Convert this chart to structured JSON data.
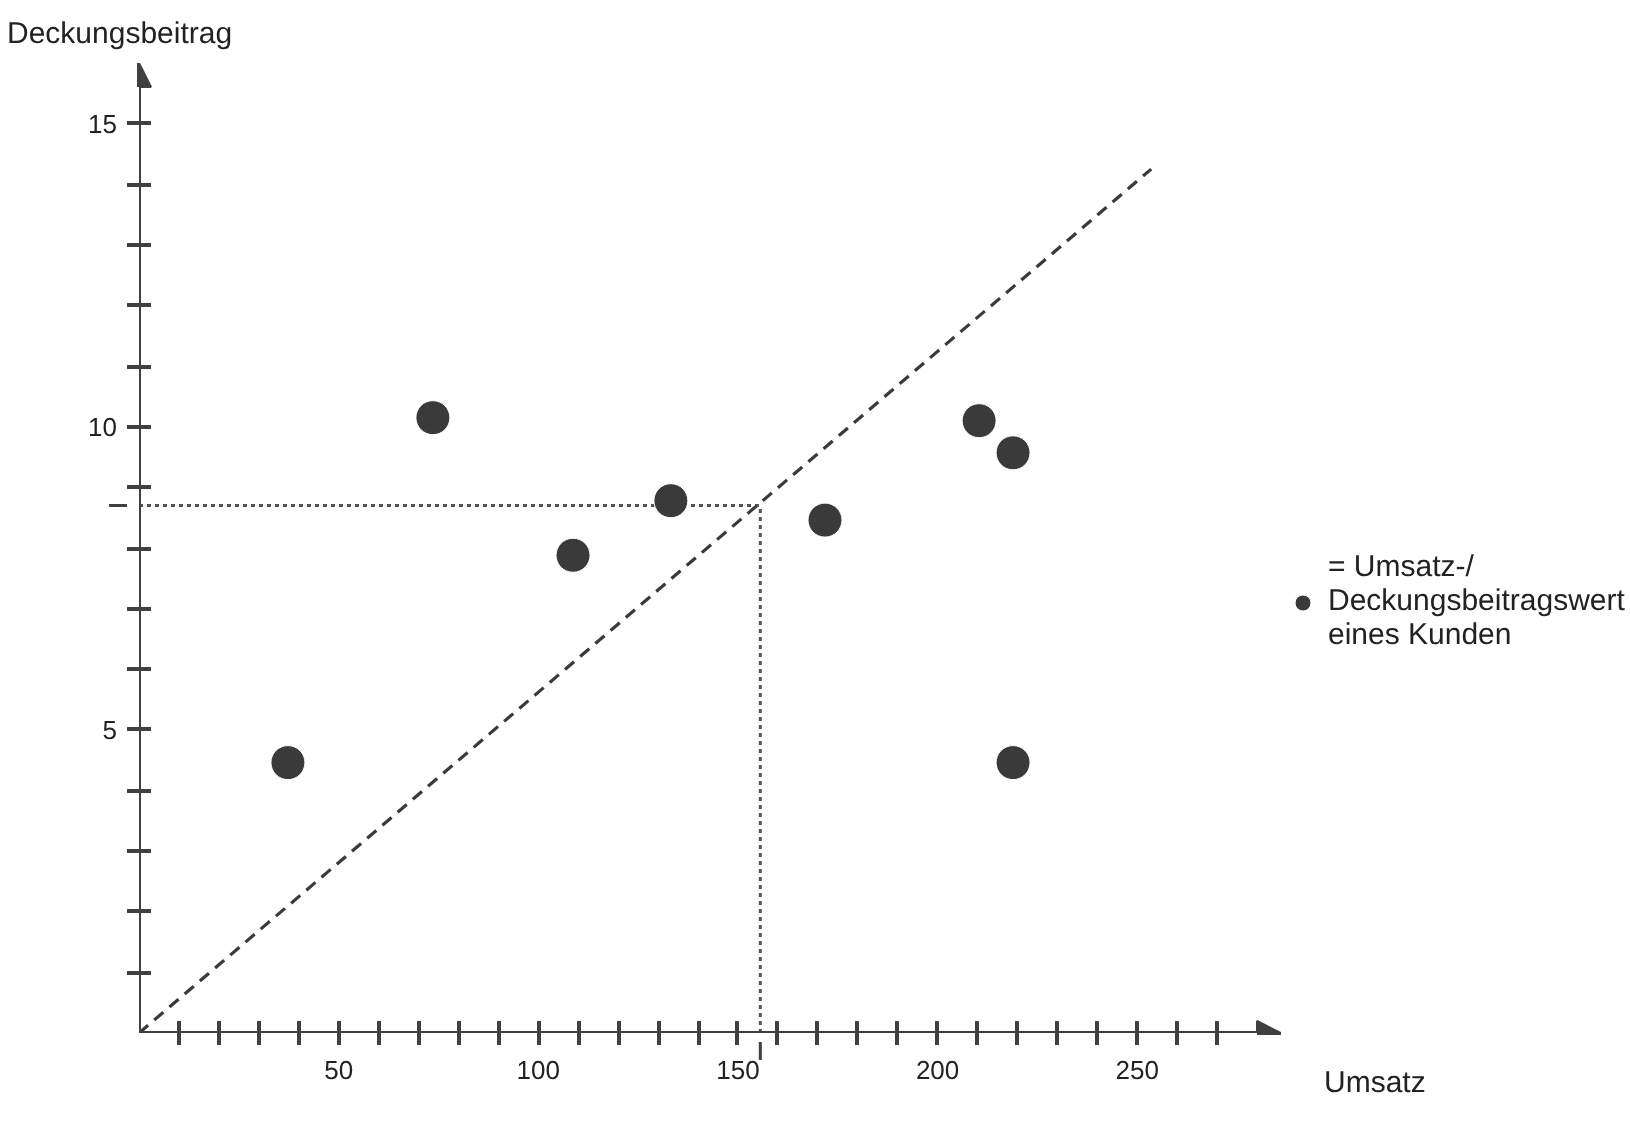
{
  "chart_data": {
    "type": "scatter",
    "xlabel": "Umsatz",
    "ylabel": "Deckungsbeitrag",
    "x": [
      37.3,
      73.6,
      108.7,
      133.2,
      171.8,
      210.4,
      218.9,
      218.9
    ],
    "series": [
      {
        "name": "= Umsatz-/\nDeckungsbeitragswert\neines Kunden",
        "color": "#3a3a3a",
        "values": [
          4.46,
          10.15,
          7.88,
          8.78,
          8.46,
          10.1,
          9.57,
          4.46
        ]
      },
      {
        "type": "line",
        "color": "#3a3a3a",
        "line_style": "dashed",
        "marker": "none",
        "x": [
          0,
          253.5
        ],
        "values": [
          0,
          14.25
        ]
      }
    ],
    "marker": "circle",
    "grid": false,
    "legend": "right",
    "xlim": [
      0,
      286
    ],
    "ylim": [
      0,
      16
    ],
    "xticks": [
      {
        "value": 10,
        "label": null
      },
      {
        "value": 20,
        "label": null
      },
      {
        "value": 30,
        "label": null
      },
      {
        "value": 40,
        "label": null
      },
      50,
      {
        "value": 60,
        "label": null
      },
      {
        "value": 70,
        "label": null
      },
      {
        "value": 80,
        "label": null
      },
      {
        "value": 90,
        "label": null
      },
      100,
      {
        "value": 110,
        "label": null
      },
      {
        "value": 120,
        "label": null
      },
      {
        "value": 130,
        "label": null
      },
      {
        "value": 140,
        "label": null
      },
      150,
      {
        "value": 160,
        "label": null
      },
      {
        "value": 170,
        "label": null
      },
      {
        "value": 180,
        "label": null
      },
      {
        "value": 190,
        "label": null
      },
      200,
      {
        "value": 210,
        "label": null
      },
      {
        "value": 220,
        "label": null
      },
      {
        "value": 230,
        "label": null
      },
      {
        "value": 240,
        "label": null
      },
      250,
      {
        "value": 260,
        "label": null
      },
      {
        "value": 270,
        "label": null
      }
    ],
    "yticks": [
      {
        "value": 1,
        "label": null
      },
      {
        "value": 2,
        "label": null
      },
      {
        "value": 3,
        "label": null
      },
      {
        "value": 4,
        "label": null
      },
      5,
      {
        "value": 6,
        "label": null
      },
      {
        "value": 7,
        "label": null
      },
      {
        "value": 8,
        "label": null
      },
      {
        "value": 9,
        "label": null
      },
      10,
      {
        "value": 11,
        "label": null
      },
      {
        "value": 12,
        "label": null
      },
      {
        "value": 13,
        "label": null
      },
      {
        "value": 14,
        "label": null
      },
      15
    ],
    "ref_lines": [
      {
        "axis": "x",
        "value": 155.6,
        "line_style": "dotted",
        "color": "#555555"
      },
      {
        "axis": "y",
        "value": 8.7,
        "line_style": "dotted",
        "color": "#555555"
      }
    ]
  }
}
